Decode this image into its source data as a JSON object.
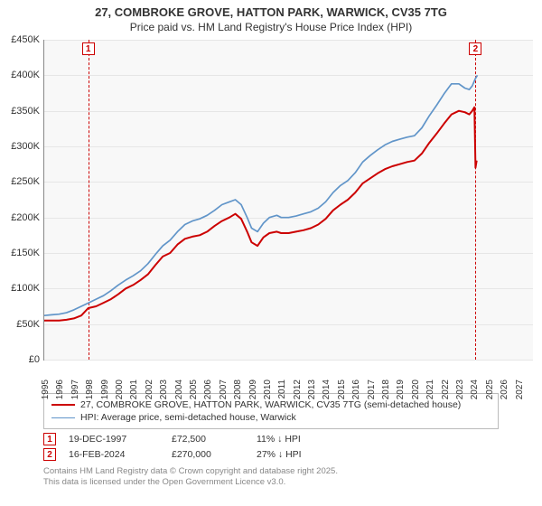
{
  "title": {
    "line1": "27, COMBROKE GROVE, HATTON PARK, WARWICK, CV35 7TG",
    "line2": "Price paid vs. HM Land Registry's House Price Index (HPI)"
  },
  "chart": {
    "type": "line",
    "background_color": "#f8f8f8",
    "grid_color": "#e6e6e6",
    "axis_color": "#888888",
    "label_fontsize": 11,
    "x": {
      "min": 1995,
      "max": 2028,
      "ticks": [
        1995,
        1996,
        1997,
        1998,
        1999,
        2000,
        2001,
        2002,
        2003,
        2004,
        2005,
        2006,
        2007,
        2008,
        2009,
        2010,
        2011,
        2012,
        2013,
        2014,
        2015,
        2016,
        2017,
        2018,
        2019,
        2020,
        2021,
        2022,
        2023,
        2024,
        2025,
        2026,
        2027
      ]
    },
    "y": {
      "min": 0,
      "max": 450000,
      "ticks": [
        0,
        50000,
        100000,
        150000,
        200000,
        250000,
        300000,
        350000,
        400000,
        450000
      ],
      "tick_labels": [
        "£0",
        "£50K",
        "£100K",
        "£150K",
        "£200K",
        "£250K",
        "£300K",
        "£350K",
        "£400K",
        "£450K"
      ]
    },
    "series": [
      {
        "id": "property",
        "label": "27, COMBROKE GROVE, HATTON PARK, WARWICK, CV35 7TG (semi-detached house)",
        "color": "#cc0000",
        "line_width": 2,
        "data": [
          [
            1995.0,
            55000
          ],
          [
            1995.5,
            55000
          ],
          [
            1996.0,
            55000
          ],
          [
            1996.5,
            56000
          ],
          [
            1997.0,
            58000
          ],
          [
            1997.5,
            62000
          ],
          [
            1997.97,
            72500
          ],
          [
            1998.5,
            75000
          ],
          [
            1999.0,
            80000
          ],
          [
            1999.5,
            85000
          ],
          [
            2000.0,
            92000
          ],
          [
            2000.5,
            100000
          ],
          [
            2001.0,
            105000
          ],
          [
            2001.5,
            112000
          ],
          [
            2002.0,
            120000
          ],
          [
            2002.5,
            133000
          ],
          [
            2003.0,
            145000
          ],
          [
            2003.5,
            150000
          ],
          [
            2004.0,
            162000
          ],
          [
            2004.5,
            170000
          ],
          [
            2005.0,
            173000
          ],
          [
            2005.5,
            175000
          ],
          [
            2006.0,
            180000
          ],
          [
            2006.5,
            188000
          ],
          [
            2007.0,
            195000
          ],
          [
            2007.5,
            200000
          ],
          [
            2007.9,
            205000
          ],
          [
            2008.3,
            198000
          ],
          [
            2008.7,
            180000
          ],
          [
            2009.0,
            165000
          ],
          [
            2009.4,
            160000
          ],
          [
            2009.8,
            172000
          ],
          [
            2010.2,
            178000
          ],
          [
            2010.7,
            180000
          ],
          [
            2011.0,
            178000
          ],
          [
            2011.5,
            178000
          ],
          [
            2012.0,
            180000
          ],
          [
            2012.5,
            182000
          ],
          [
            2013.0,
            185000
          ],
          [
            2013.5,
            190000
          ],
          [
            2014.0,
            198000
          ],
          [
            2014.5,
            210000
          ],
          [
            2015.0,
            218000
          ],
          [
            2015.5,
            225000
          ],
          [
            2016.0,
            235000
          ],
          [
            2016.5,
            248000
          ],
          [
            2017.0,
            255000
          ],
          [
            2017.5,
            262000
          ],
          [
            2018.0,
            268000
          ],
          [
            2018.5,
            272000
          ],
          [
            2019.0,
            275000
          ],
          [
            2019.5,
            278000
          ],
          [
            2020.0,
            280000
          ],
          [
            2020.5,
            290000
          ],
          [
            2021.0,
            305000
          ],
          [
            2021.5,
            318000
          ],
          [
            2022.0,
            332000
          ],
          [
            2022.5,
            345000
          ],
          [
            2023.0,
            350000
          ],
          [
            2023.4,
            348000
          ],
          [
            2023.7,
            345000
          ],
          [
            2023.9,
            350000
          ],
          [
            2024.05,
            355000
          ],
          [
            2024.12,
            270000
          ],
          [
            2024.2,
            280000
          ]
        ]
      },
      {
        "id": "hpi",
        "label": "HPI: Average price, semi-detached house, Warwick",
        "color": "#6195c9",
        "line_width": 1.7,
        "data": [
          [
            1995.0,
            62000
          ],
          [
            1995.5,
            63000
          ],
          [
            1996.0,
            64000
          ],
          [
            1996.5,
            66000
          ],
          [
            1997.0,
            70000
          ],
          [
            1997.5,
            75000
          ],
          [
            1998.0,
            80000
          ],
          [
            1998.5,
            85000
          ],
          [
            1999.0,
            90000
          ],
          [
            1999.5,
            97000
          ],
          [
            2000.0,
            105000
          ],
          [
            2000.5,
            112000
          ],
          [
            2001.0,
            118000
          ],
          [
            2001.5,
            125000
          ],
          [
            2002.0,
            135000
          ],
          [
            2002.5,
            148000
          ],
          [
            2003.0,
            160000
          ],
          [
            2003.5,
            168000
          ],
          [
            2004.0,
            180000
          ],
          [
            2004.5,
            190000
          ],
          [
            2005.0,
            195000
          ],
          [
            2005.5,
            198000
          ],
          [
            2006.0,
            203000
          ],
          [
            2006.5,
            210000
          ],
          [
            2007.0,
            218000
          ],
          [
            2007.5,
            222000
          ],
          [
            2007.9,
            225000
          ],
          [
            2008.3,
            218000
          ],
          [
            2008.7,
            200000
          ],
          [
            2009.0,
            185000
          ],
          [
            2009.4,
            180000
          ],
          [
            2009.8,
            192000
          ],
          [
            2010.2,
            200000
          ],
          [
            2010.7,
            203000
          ],
          [
            2011.0,
            200000
          ],
          [
            2011.5,
            200000
          ],
          [
            2012.0,
            202000
          ],
          [
            2012.5,
            205000
          ],
          [
            2013.0,
            208000
          ],
          [
            2013.5,
            213000
          ],
          [
            2014.0,
            222000
          ],
          [
            2014.5,
            235000
          ],
          [
            2015.0,
            245000
          ],
          [
            2015.5,
            252000
          ],
          [
            2016.0,
            263000
          ],
          [
            2016.5,
            278000
          ],
          [
            2017.0,
            287000
          ],
          [
            2017.5,
            295000
          ],
          [
            2018.0,
            302000
          ],
          [
            2018.5,
            307000
          ],
          [
            2019.0,
            310000
          ],
          [
            2019.5,
            313000
          ],
          [
            2020.0,
            315000
          ],
          [
            2020.5,
            326000
          ],
          [
            2021.0,
            343000
          ],
          [
            2021.5,
            358000
          ],
          [
            2022.0,
            374000
          ],
          [
            2022.5,
            388000
          ],
          [
            2023.0,
            388000
          ],
          [
            2023.4,
            382000
          ],
          [
            2023.7,
            380000
          ],
          [
            2023.9,
            385000
          ],
          [
            2024.1,
            395000
          ],
          [
            2024.25,
            400000
          ]
        ]
      }
    ],
    "markers": [
      {
        "n": "1",
        "x": 1997.97,
        "color": "#cc0000",
        "date": "19-DEC-1997",
        "price": "£72,500",
        "hpi_delta": "11% ↓ HPI"
      },
      {
        "n": "2",
        "x": 2024.12,
        "color": "#cc0000",
        "date": "16-FEB-2024",
        "price": "£270,000",
        "hpi_delta": "27% ↓ HPI"
      }
    ]
  },
  "footer": {
    "line1": "Contains HM Land Registry data © Crown copyright and database right 2025.",
    "line2": "This data is licensed under the Open Government Licence v3.0."
  }
}
